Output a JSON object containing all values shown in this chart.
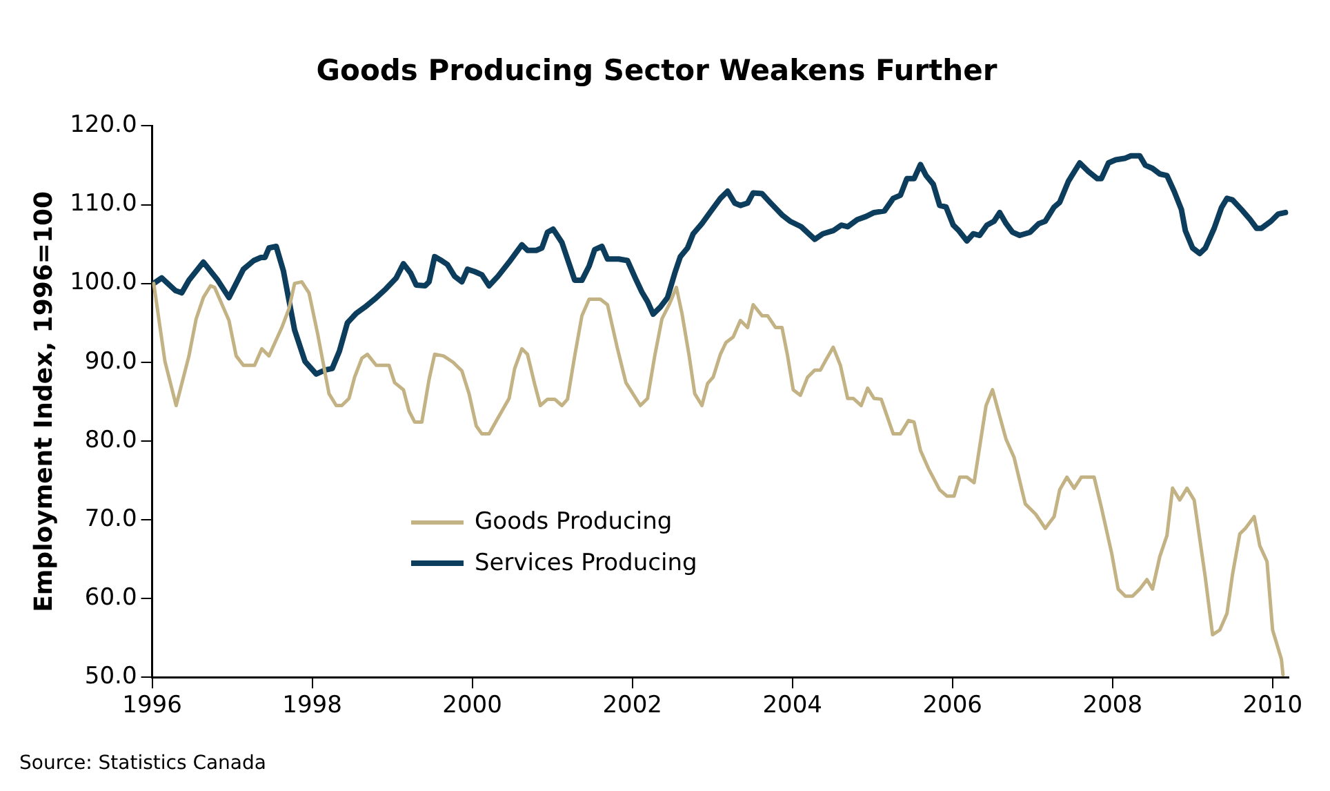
{
  "chart_data": {
    "type": "line",
    "title": "Goods Producing Sector Weakens Further",
    "ylabel": "Employment Index, 1996=100",
    "annotations": [
      "Source: Statistics Canada"
    ],
    "xlim": [
      1996,
      2010.2
    ],
    "xticks": [
      1996,
      1998,
      2000,
      2002,
      2004,
      2006,
      2008,
      2010
    ],
    "ylim": [
      50,
      120
    ],
    "yticks": [
      {
        "value": 50,
        "label": "50.0"
      },
      {
        "value": 60,
        "label": "60.0"
      },
      {
        "value": 70,
        "label": "70.0"
      },
      {
        "value": 80,
        "label": "80.0"
      },
      {
        "value": 90,
        "label": "90.0"
      },
      {
        "value": 100,
        "label": "100.0"
      },
      {
        "value": 110,
        "label": "110.0"
      },
      {
        "value": 120,
        "label": "120.0"
      }
    ],
    "grid": false,
    "legend": "bottom left",
    "marker": "none",
    "line_style": "solid",
    "series": [
      {
        "name": "Goods Producing",
        "color": "#c3b284",
        "x": [
          1996.02,
          1996.16,
          1996.3,
          1996.46,
          1996.55,
          1996.64,
          1996.73,
          1996.78,
          1996.96,
          1997.05,
          1997.14,
          1997.28,
          1997.37,
          1997.46,
          1997.62,
          1997.71,
          1997.78,
          1997.87,
          1997.96,
          1998.07,
          1998.21,
          1998.3,
          1998.37,
          1998.46,
          1998.53,
          1998.62,
          1998.69,
          1998.8,
          1998.96,
          1999.03,
          1999.14,
          1999.21,
          1999.28,
          1999.37,
          1999.46,
          1999.53,
          1999.64,
          1999.76,
          1999.87,
          1999.96,
          2000.05,
          2000.12,
          2000.21,
          2000.32,
          2000.46,
          2000.53,
          2000.62,
          2000.69,
          2000.78,
          2000.85,
          2000.94,
          2001.03,
          2001.12,
          2001.19,
          2001.28,
          2001.37,
          2001.46,
          2001.6,
          2001.69,
          2001.81,
          2001.92,
          2002.1,
          2002.19,
          2002.28,
          2002.37,
          2002.46,
          2002.55,
          2002.62,
          2002.71,
          2002.78,
          2002.87,
          2002.94,
          2003.01,
          2003.1,
          2003.17,
          2003.26,
          2003.35,
          2003.44,
          2003.51,
          2003.62,
          2003.69,
          2003.79,
          2003.87,
          2003.94,
          2004.01,
          2004.1,
          2004.19,
          2004.28,
          2004.35,
          2004.42,
          2004.51,
          2004.6,
          2004.69,
          2004.76,
          2004.86,
          2004.94,
          2005.02,
          2005.11,
          2005.26,
          2005.35,
          2005.45,
          2005.52,
          2005.6,
          2005.7,
          2005.84,
          2005.93,
          2006.02,
          2006.09,
          2006.18,
          2006.27,
          2006.42,
          2006.5,
          2006.67,
          2006.77,
          2006.91,
          2007.04,
          2007.16,
          2007.27,
          2007.34,
          2007.43,
          2007.52,
          2007.61,
          2007.77,
          2007.86,
          2007.99,
          2008.07,
          2008.16,
          2008.25,
          2008.34,
          2008.43,
          2008.5,
          2008.59,
          2008.68,
          2008.75,
          2008.84,
          2008.93,
          2009.02,
          2009.16,
          2009.25,
          2009.34,
          2009.43,
          2009.5,
          2009.59,
          2009.66,
          2009.77,
          2009.84,
          2009.93,
          2010,
          2010.11,
          2010.13
        ],
        "values": [
          100,
          90.1,
          84.5,
          90.8,
          95.5,
          98.2,
          99.7,
          99.5,
          95.3,
          90.8,
          89.6,
          89.6,
          91.7,
          90.8,
          94.4,
          96.8,
          100,
          100.2,
          98.8,
          93.5,
          86,
          84.5,
          84.5,
          85.4,
          88.1,
          90.5,
          91,
          89.6,
          89.6,
          87.4,
          86.5,
          83.8,
          82.4,
          82.4,
          87.8,
          91,
          90.8,
          90,
          88.9,
          86,
          81.9,
          80.9,
          80.9,
          82.9,
          85.4,
          89.2,
          91.7,
          91,
          87.2,
          84.5,
          85.3,
          85.3,
          84.5,
          85.3,
          90.8,
          95.9,
          98,
          98,
          97.3,
          91.9,
          87.4,
          84.5,
          85.4,
          90.8,
          95.5,
          97.3,
          99.5,
          96.2,
          90.8,
          86,
          84.5,
          87.3,
          88.1,
          91,
          92.5,
          93.2,
          95.3,
          94.4,
          97.3,
          95.9,
          95.9,
          94.4,
          94.4,
          90.8,
          86.5,
          85.8,
          88.1,
          89,
          89,
          90.3,
          91.9,
          89.6,
          85.4,
          85.4,
          84.5,
          86.7,
          85.4,
          85.3,
          80.9,
          80.9,
          82.6,
          82.4,
          78.8,
          76.5,
          73.8,
          73,
          73,
          75.4,
          75.4,
          74.7,
          84.5,
          86.5,
          80.2,
          77.9,
          72,
          70.7,
          68.9,
          70.4,
          73.8,
          75.4,
          74,
          75.4,
          75.4,
          71.6,
          65.7,
          61.2,
          60.3,
          60.3,
          61.2,
          62.4,
          61.2,
          65.3,
          68,
          74,
          72.5,
          74,
          72.5,
          62.6,
          55.4,
          56,
          58.1,
          63.1,
          68.2,
          68.9,
          70.4,
          66.7,
          64.7,
          56,
          52.3,
          50.3
        ]
      },
      {
        "name": "Services Producing",
        "color": "#0d3d5c",
        "x": [
          1996.02,
          1996.12,
          1996.29,
          1996.37,
          1996.46,
          1996.64,
          1996.82,
          1996.96,
          1997.05,
          1997.14,
          1997.27,
          1997.36,
          1997.41,
          1997.46,
          1997.55,
          1997.64,
          1997.78,
          1997.91,
          1998.05,
          1998.16,
          1998.25,
          1998.34,
          1998.44,
          1998.55,
          1998.66,
          1998.78,
          1998.92,
          1999.05,
          1999.14,
          1999.23,
          1999.3,
          1999.41,
          1999.46,
          1999.53,
          1999.6,
          1999.69,
          1999.78,
          1999.87,
          1999.94,
          2000.03,
          2000.12,
          2000.21,
          2000.32,
          2000.46,
          2000.62,
          2000.69,
          2000.8,
          2000.87,
          2000.94,
          2001.01,
          2001.12,
          2001.19,
          2001.28,
          2001.37,
          2001.46,
          2001.53,
          2001.62,
          2001.69,
          2001.83,
          2001.94,
          2002.05,
          2002.12,
          2002.19,
          2002.26,
          2002.35,
          2002.44,
          2002.53,
          2002.6,
          2002.69,
          2002.76,
          2002.87,
          2002.97,
          2003.1,
          2003.19,
          2003.28,
          2003.35,
          2003.44,
          2003.51,
          2003.62,
          2003.72,
          2003.87,
          2003.97,
          2004.11,
          2004.28,
          2004.38,
          2004.51,
          2004.61,
          2004.69,
          2004.81,
          2004.92,
          2005.02,
          2005.15,
          2005.26,
          2005.35,
          2005.43,
          2005.52,
          2005.6,
          2005.67,
          2005.76,
          2005.84,
          2005.92,
          2006.01,
          2006.08,
          2006.18,
          2006.26,
          2006.34,
          2006.43,
          2006.52,
          2006.59,
          2006.67,
          2006.75,
          2006.84,
          2006.97,
          2007.08,
          2007.16,
          2007.27,
          2007.34,
          2007.45,
          2007.59,
          2007.7,
          2007.81,
          2007.86,
          2007.95,
          2008.04,
          2008.16,
          2008.23,
          2008.34,
          2008.41,
          2008.5,
          2008.59,
          2008.68,
          2008.77,
          2008.86,
          2008.91,
          2009,
          2009.09,
          2009.16,
          2009.27,
          2009.36,
          2009.43,
          2009.5,
          2009.61,
          2009.72,
          2009.8,
          2009.86,
          2009.98,
          2010.07,
          2010.16
        ],
        "values": [
          100,
          100.7,
          99.1,
          98.8,
          100.4,
          102.7,
          100.4,
          98.2,
          100,
          101.8,
          102.9,
          103.3,
          103.3,
          104.5,
          104.7,
          101.6,
          94.1,
          90.1,
          88.5,
          89,
          89.2,
          91.4,
          95,
          96.2,
          97,
          98,
          99.3,
          100.7,
          102.5,
          101.3,
          99.8,
          99.7,
          100.2,
          103.4,
          103,
          102.4,
          100.9,
          100.2,
          101.8,
          101.5,
          101.1,
          99.7,
          100.9,
          102.7,
          104.9,
          104.2,
          104.2,
          104.5,
          106.5,
          106.9,
          105.2,
          103.1,
          100.4,
          100.4,
          102.2,
          104.3,
          104.7,
          103.1,
          103.1,
          102.9,
          100.4,
          98.9,
          97.7,
          96.1,
          97,
          98.2,
          101.3,
          103.4,
          104.5,
          106.3,
          107.6,
          109,
          110.8,
          111.7,
          110.2,
          109.9,
          110.2,
          111.5,
          111.4,
          110.3,
          108.7,
          107.9,
          107.2,
          105.6,
          106.3,
          106.7,
          107.4,
          107.2,
          108.1,
          108.5,
          109,
          109.2,
          110.8,
          111.2,
          113.3,
          113.3,
          115.1,
          113.7,
          112.6,
          109.9,
          109.7,
          107.4,
          106.7,
          105.4,
          106.3,
          106.1,
          107.4,
          107.9,
          109,
          107.6,
          106.5,
          106.1,
          106.5,
          107.6,
          107.9,
          109.7,
          110.3,
          113,
          115.3,
          114.2,
          113.3,
          113.3,
          115.3,
          115.7,
          115.9,
          116.2,
          116.2,
          115,
          114.6,
          113.9,
          113.7,
          111.7,
          109.4,
          106.7,
          104.5,
          103.8,
          104.5,
          107,
          109.6,
          110.8,
          110.6,
          109.4,
          108.1,
          107,
          107,
          107.9,
          108.8,
          109
        ]
      }
    ]
  }
}
